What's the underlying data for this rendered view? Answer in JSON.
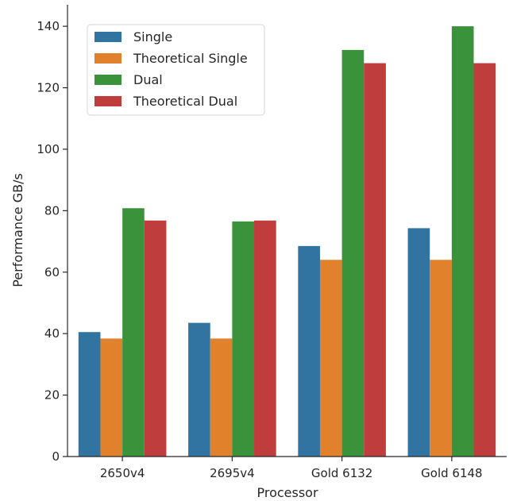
{
  "chart_data": {
    "type": "bar",
    "xlabel": "Processor",
    "ylabel": "Performance GB/s",
    "ylim": [
      0,
      147
    ],
    "yticks": [
      0,
      20,
      40,
      60,
      80,
      100,
      120,
      140
    ],
    "grid": false,
    "legend_position": "top-left",
    "categories": [
      "2650v4",
      "2695v4",
      "Gold 6132",
      "Gold 6148"
    ],
    "series": [
      {
        "name": "Single",
        "color": "#3274a1",
        "values": [
          40.5,
          43.5,
          68.5,
          74.3
        ]
      },
      {
        "name": "Theoretical Single",
        "color": "#e1812c",
        "values": [
          38.4,
          38.4,
          64.0,
          64.0
        ]
      },
      {
        "name": "Dual",
        "color": "#3a923a",
        "values": [
          80.8,
          76.5,
          132.3,
          140.0
        ]
      },
      {
        "name": "Theoretical Dual",
        "color": "#c03d3e",
        "values": [
          76.8,
          76.8,
          128.0,
          128.0
        ]
      }
    ]
  }
}
